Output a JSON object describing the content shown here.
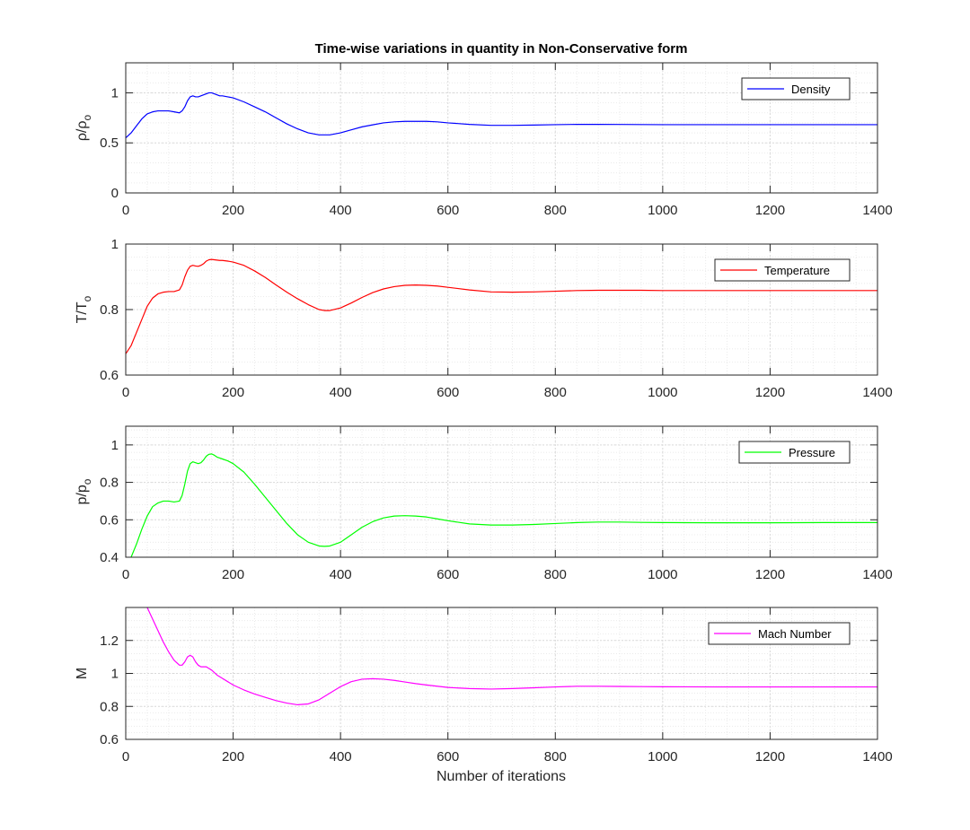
{
  "figure": {
    "title": "Time-wise variations in quantity in Non-Conservative form",
    "xlabel": "Number of iterations"
  },
  "chart_data": [
    {
      "type": "line",
      "ylabel": "ρ/ρo",
      "ylabel_main": "ρ/ρ",
      "ylabel_sub": "o",
      "xlim": [
        0,
        1400
      ],
      "ylim": [
        0,
        1.3
      ],
      "xticks": [
        0,
        200,
        400,
        600,
        800,
        1000,
        1200,
        1400
      ],
      "yticks": [
        0,
        0.5,
        1
      ],
      "grid": true,
      "minor_grid": true,
      "legend": "top-right",
      "series": [
        {
          "name": "Density",
          "color": "#0000ff",
          "x": [
            0,
            10,
            20,
            30,
            40,
            50,
            60,
            70,
            80,
            90,
            100,
            105,
            110,
            115,
            120,
            125,
            130,
            135,
            140,
            145,
            150,
            155,
            160,
            165,
            170,
            175,
            180,
            190,
            200,
            220,
            240,
            260,
            280,
            300,
            320,
            340,
            360,
            370,
            380,
            400,
            420,
            440,
            460,
            480,
            500,
            520,
            540,
            560,
            580,
            600,
            640,
            680,
            720,
            760,
            800,
            840,
            880,
            920,
            960,
            1000,
            1100,
            1200,
            1300,
            1400
          ],
          "y": [
            0.55,
            0.6,
            0.67,
            0.74,
            0.79,
            0.81,
            0.82,
            0.82,
            0.82,
            0.81,
            0.8,
            0.82,
            0.86,
            0.92,
            0.96,
            0.97,
            0.96,
            0.96,
            0.97,
            0.98,
            0.99,
            1.0,
            1.0,
            0.99,
            0.98,
            0.97,
            0.97,
            0.96,
            0.95,
            0.91,
            0.86,
            0.81,
            0.75,
            0.69,
            0.64,
            0.6,
            0.58,
            0.58,
            0.58,
            0.6,
            0.63,
            0.66,
            0.68,
            0.7,
            0.71,
            0.715,
            0.715,
            0.715,
            0.71,
            0.7,
            0.685,
            0.675,
            0.675,
            0.678,
            0.682,
            0.685,
            0.685,
            0.684,
            0.683,
            0.682,
            0.682,
            0.682,
            0.682,
            0.682
          ]
        }
      ]
    },
    {
      "type": "line",
      "ylabel": "T/To",
      "ylabel_main": "T/T",
      "ylabel_sub": "o",
      "xlim": [
        0,
        1400
      ],
      "ylim": [
        0.6,
        1.0
      ],
      "xticks": [
        0,
        200,
        400,
        600,
        800,
        1000,
        1200,
        1400
      ],
      "yticks": [
        0.6,
        0.8,
        1
      ],
      "grid": true,
      "minor_grid": true,
      "legend": "top-right",
      "series": [
        {
          "name": "Temperature",
          "color": "#ff0000",
          "x": [
            0,
            10,
            20,
            30,
            40,
            50,
            60,
            70,
            80,
            90,
            100,
            105,
            110,
            115,
            120,
            125,
            130,
            135,
            140,
            145,
            150,
            155,
            160,
            165,
            170,
            175,
            180,
            190,
            200,
            220,
            240,
            260,
            280,
            300,
            320,
            340,
            360,
            370,
            380,
            400,
            420,
            440,
            460,
            480,
            500,
            520,
            540,
            560,
            580,
            600,
            640,
            680,
            720,
            760,
            800,
            840,
            880,
            920,
            960,
            1000,
            1100,
            1200,
            1300,
            1400
          ],
          "y": [
            0.665,
            0.69,
            0.73,
            0.77,
            0.81,
            0.835,
            0.848,
            0.853,
            0.855,
            0.855,
            0.86,
            0.875,
            0.9,
            0.92,
            0.932,
            0.935,
            0.933,
            0.932,
            0.935,
            0.94,
            0.948,
            0.952,
            0.953,
            0.952,
            0.951,
            0.95,
            0.95,
            0.948,
            0.945,
            0.935,
            0.918,
            0.898,
            0.875,
            0.853,
            0.833,
            0.815,
            0.8,
            0.797,
            0.797,
            0.805,
            0.82,
            0.837,
            0.852,
            0.863,
            0.87,
            0.874,
            0.875,
            0.874,
            0.872,
            0.868,
            0.86,
            0.854,
            0.853,
            0.854,
            0.856,
            0.858,
            0.859,
            0.859,
            0.859,
            0.858,
            0.858,
            0.858,
            0.858,
            0.858
          ]
        }
      ]
    },
    {
      "type": "line",
      "ylabel": "p/po",
      "ylabel_main": "p/p",
      "ylabel_sub": "o",
      "xlim": [
        0,
        1400
      ],
      "ylim": [
        0.4,
        1.1
      ],
      "xticks": [
        0,
        200,
        400,
        600,
        800,
        1000,
        1200,
        1400
      ],
      "yticks": [
        0.4,
        0.6,
        0.8,
        1
      ],
      "grid": true,
      "minor_grid": true,
      "legend": "top-right",
      "series": [
        {
          "name": "Pressure",
          "color": "#00ff00",
          "x": [
            10,
            20,
            30,
            40,
            50,
            60,
            70,
            80,
            90,
            100,
            105,
            110,
            115,
            120,
            125,
            130,
            135,
            140,
            145,
            150,
            155,
            160,
            165,
            170,
            175,
            180,
            190,
            200,
            220,
            240,
            260,
            280,
            300,
            320,
            340,
            360,
            370,
            380,
            400,
            420,
            440,
            460,
            480,
            500,
            520,
            540,
            560,
            580,
            600,
            640,
            680,
            720,
            760,
            800,
            840,
            880,
            920,
            960,
            1000,
            1100,
            1200,
            1300,
            1400
          ],
          "y": [
            0.4,
            0.47,
            0.55,
            0.62,
            0.67,
            0.69,
            0.7,
            0.7,
            0.695,
            0.7,
            0.73,
            0.79,
            0.86,
            0.9,
            0.91,
            0.905,
            0.9,
            0.905,
            0.92,
            0.94,
            0.95,
            0.952,
            0.945,
            0.935,
            0.93,
            0.925,
            0.915,
            0.9,
            0.855,
            0.79,
            0.72,
            0.65,
            0.58,
            0.52,
            0.48,
            0.46,
            0.458,
            0.46,
            0.48,
            0.52,
            0.56,
            0.59,
            0.61,
            0.62,
            0.622,
            0.62,
            0.615,
            0.605,
            0.595,
            0.578,
            0.572,
            0.572,
            0.575,
            0.58,
            0.585,
            0.588,
            0.588,
            0.586,
            0.585,
            0.584,
            0.584,
            0.585,
            0.585
          ]
        }
      ]
    },
    {
      "type": "line",
      "ylabel": "M",
      "xlim": [
        0,
        1400
      ],
      "ylim": [
        0.6,
        1.4
      ],
      "xticks": [
        0,
        200,
        400,
        600,
        800,
        1000,
        1200,
        1400
      ],
      "yticks": [
        0.6,
        0.8,
        1,
        1.2
      ],
      "grid": true,
      "minor_grid": true,
      "legend": "top-right",
      "series": [
        {
          "name": "Mach Number",
          "color": "#ff00ff",
          "x": [
            40,
            50,
            60,
            70,
            80,
            90,
            100,
            105,
            110,
            115,
            120,
            125,
            130,
            135,
            140,
            145,
            150,
            155,
            160,
            170,
            180,
            190,
            200,
            220,
            240,
            260,
            280,
            300,
            320,
            340,
            360,
            380,
            400,
            420,
            440,
            460,
            480,
            500,
            520,
            540,
            560,
            600,
            640,
            680,
            720,
            760,
            800,
            840,
            880,
            920,
            960,
            1000,
            1100,
            1200,
            1300,
            1400
          ],
          "y": [
            1.4,
            1.33,
            1.26,
            1.19,
            1.13,
            1.08,
            1.05,
            1.05,
            1.07,
            1.1,
            1.11,
            1.1,
            1.07,
            1.05,
            1.04,
            1.04,
            1.04,
            1.03,
            1.02,
            0.99,
            0.97,
            0.95,
            0.93,
            0.9,
            0.875,
            0.855,
            0.835,
            0.82,
            0.81,
            0.815,
            0.84,
            0.88,
            0.92,
            0.95,
            0.965,
            0.968,
            0.965,
            0.958,
            0.948,
            0.938,
            0.93,
            0.915,
            0.908,
            0.905,
            0.908,
            0.913,
            0.918,
            0.922,
            0.922,
            0.921,
            0.92,
            0.919,
            0.918,
            0.918,
            0.918,
            0.918
          ]
        }
      ]
    }
  ]
}
